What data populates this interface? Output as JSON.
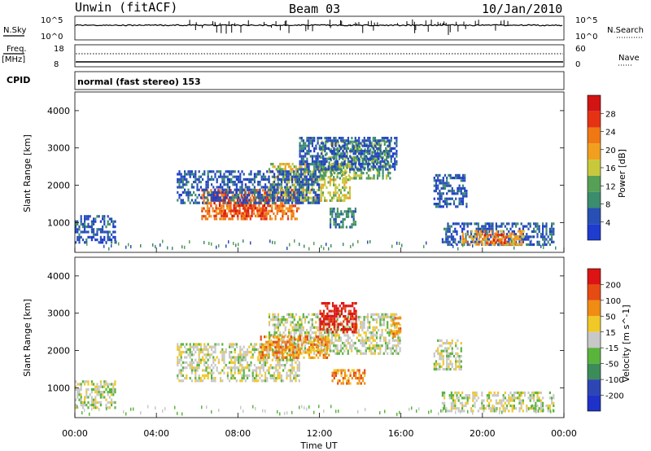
{
  "header": {
    "station": "Unwin (fitACF)",
    "beam": "Beam 03",
    "date": "10/Jan/2010"
  },
  "summary": {
    "nsky_label": "N.Sky",
    "nsky_ticks": [
      "10^5",
      "10^0"
    ],
    "nsearch_label": "N.Search",
    "nsearch_ticks": [
      "10^5",
      "10^0"
    ],
    "freq_label": "Freq.",
    "freq_unit": "[MHz]",
    "freq_ticks": [
      "18",
      "8"
    ],
    "nave_label": "Nave",
    "nave_ticks": [
      "60",
      "0"
    ],
    "cpid_label": "CPID",
    "cpid_text": "normal (fast stereo) 153"
  },
  "colors": {
    "power": [
      "#1e3ccd",
      "#2850b4",
      "#3c8c6e",
      "#56a055",
      "#c8c83c",
      "#f0a01e",
      "#f07814",
      "#e63214",
      "#d21414"
    ],
    "velocity": [
      "#1e32c8",
      "#2d46b4",
      "#3c8c5a",
      "#5ab43c",
      "#c8c8c8",
      "#f0c828",
      "#f08c14",
      "#e64b14",
      "#dc1414"
    ]
  },
  "chart_data": [
    {
      "type": "heatmap",
      "name": "power",
      "ylabel": "Slant Range [km]",
      "yticks": [
        "4000",
        "3000",
        "2000",
        "1000"
      ],
      "ylim": [
        200,
        4500
      ],
      "xlim_hours": [
        0,
        24
      ],
      "colorbar_label": "Power [dB]",
      "colorbar_ticks": [
        "28",
        "24",
        "20",
        "16",
        "12",
        "8",
        "4"
      ],
      "regions": [
        {
          "t0": 6.2,
          "t1": 11.0,
          "r0": 1100,
          "r1": 1900,
          "level": 6
        },
        {
          "t0": 6.8,
          "t1": 9.5,
          "r0": 1200,
          "r1": 1700,
          "level": 7
        },
        {
          "t0": 9.5,
          "t1": 13.5,
          "r0": 1600,
          "r1": 2600,
          "level": 4
        },
        {
          "t0": 12.0,
          "t1": 15.5,
          "r0": 2200,
          "r1": 3200,
          "level": 3
        },
        {
          "t0": 5.0,
          "t1": 12.0,
          "r0": 1500,
          "r1": 2400,
          "level": 1
        },
        {
          "t0": 11.0,
          "t1": 15.8,
          "r0": 2400,
          "r1": 3300,
          "level": 1
        },
        {
          "t0": 12.5,
          "t1": 13.8,
          "r0": 900,
          "r1": 1400,
          "level": 2
        },
        {
          "t0": 17.6,
          "t1": 19.2,
          "r0": 1400,
          "r1": 2300,
          "level": 1
        },
        {
          "t0": 18.0,
          "t1": 23.5,
          "r0": 400,
          "r1": 1000,
          "level": 1
        },
        {
          "t0": 19.0,
          "t1": 22.0,
          "r0": 450,
          "r1": 800,
          "level": 5
        },
        {
          "t0": 20.0,
          "t1": 21.2,
          "r0": 480,
          "r1": 700,
          "level": 7
        },
        {
          "t0": 0.0,
          "t1": 2.0,
          "r0": 500,
          "r1": 1200,
          "level": 1
        }
      ]
    },
    {
      "type": "heatmap",
      "name": "velocity",
      "ylabel": "Slant Range [km]",
      "yticks": [
        "4000",
        "3000",
        "2000",
        "1000"
      ],
      "ylim": [
        200,
        4500
      ],
      "xlim_hours": [
        0,
        24
      ],
      "xticks": [
        "00:00",
        "04:00",
        "08:00",
        "12:00",
        "16:00",
        "20:00",
        "00:00"
      ],
      "xlabel": "Time UT",
      "colorbar_label": "Velocity [m s^-1]",
      "colorbar_ticks": [
        "200",
        "100",
        "50",
        "15",
        "-15",
        "-50",
        "-100",
        "-200"
      ],
      "regions": [
        {
          "t0": 5.0,
          "t1": 11.0,
          "r0": 1200,
          "r1": 2200,
          "level": 4
        },
        {
          "t0": 9.5,
          "t1": 16.0,
          "r0": 1900,
          "r1": 3000,
          "level": 4
        },
        {
          "t0": 9.0,
          "t1": 12.5,
          "r0": 1800,
          "r1": 2400,
          "level": 6
        },
        {
          "t0": 12.0,
          "t1": 13.8,
          "r0": 2500,
          "r1": 3300,
          "level": 8
        },
        {
          "t0": 12.6,
          "t1": 14.2,
          "r0": 1100,
          "r1": 1500,
          "level": 6
        },
        {
          "t0": 15.5,
          "t1": 16.0,
          "r0": 2400,
          "r1": 2900,
          "level": 6
        },
        {
          "t0": 17.6,
          "t1": 19.0,
          "r0": 1500,
          "r1": 2300,
          "level": 4
        },
        {
          "t0": 18.0,
          "t1": 23.5,
          "r0": 400,
          "r1": 900,
          "level": 4
        },
        {
          "t0": 0.0,
          "t1": 2.0,
          "r0": 500,
          "r1": 1200,
          "level": 4
        }
      ]
    }
  ]
}
